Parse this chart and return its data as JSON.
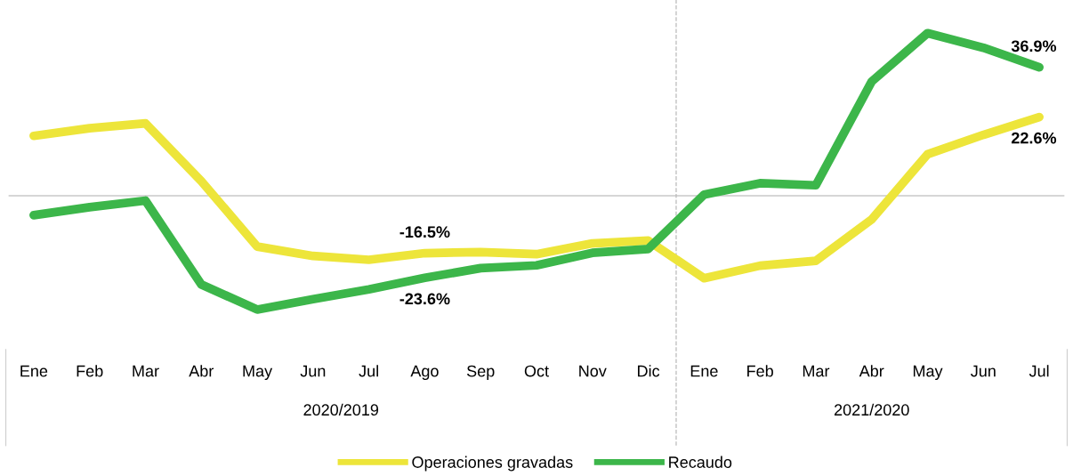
{
  "chart_data": {
    "type": "line",
    "categories": [
      "Ene",
      "Feb",
      "Mar",
      "Abr",
      "May",
      "Jun",
      "Jul",
      "Ago",
      "Sep",
      "Oct",
      "Nov",
      "Dic",
      "Ene",
      "Feb",
      "Mar",
      "Abr",
      "May",
      "Jun",
      "Jul"
    ],
    "series": [
      {
        "name": "Operaciones gravadas",
        "color": "#ede53a",
        "values": [
          17.2,
          19.4,
          20.8,
          4.2,
          -14.6,
          -17.3,
          -18.4,
          -16.5,
          -16.2,
          -16.8,
          -13.7,
          -12.9,
          -23.7,
          -20.1,
          -18.7,
          -6.8,
          11.9,
          17.5,
          22.6
        ],
        "value_labels": [
          null,
          null,
          null,
          null,
          null,
          null,
          null,
          "-16.5%",
          null,
          null,
          null,
          null,
          null,
          null,
          null,
          null,
          null,
          null,
          "22.6%"
        ]
      },
      {
        "name": "Recaudo",
        "color": "#3cb64a",
        "values": [
          -5.6,
          -3.3,
          -1.4,
          -25.5,
          -32.7,
          -29.7,
          -26.9,
          -23.6,
          -20.8,
          -20.0,
          -16.4,
          -15.3,
          0.3,
          3.6,
          3.0,
          32.8,
          46.7,
          42.5,
          36.9
        ],
        "value_labels": [
          null,
          null,
          null,
          null,
          null,
          null,
          null,
          "-23.6%",
          null,
          null,
          null,
          null,
          null,
          null,
          null,
          null,
          null,
          null,
          "36.9%"
        ]
      }
    ],
    "ref_lines": [
      {
        "axis": "y",
        "value": 0,
        "color": "#c8c8c8",
        "line_style": "solid"
      }
    ],
    "annotations": [
      "2020/2019",
      "2021/2020"
    ],
    "legend": "bottom",
    "grid": false,
    "marker": "none",
    "line_style": "solid"
  }
}
